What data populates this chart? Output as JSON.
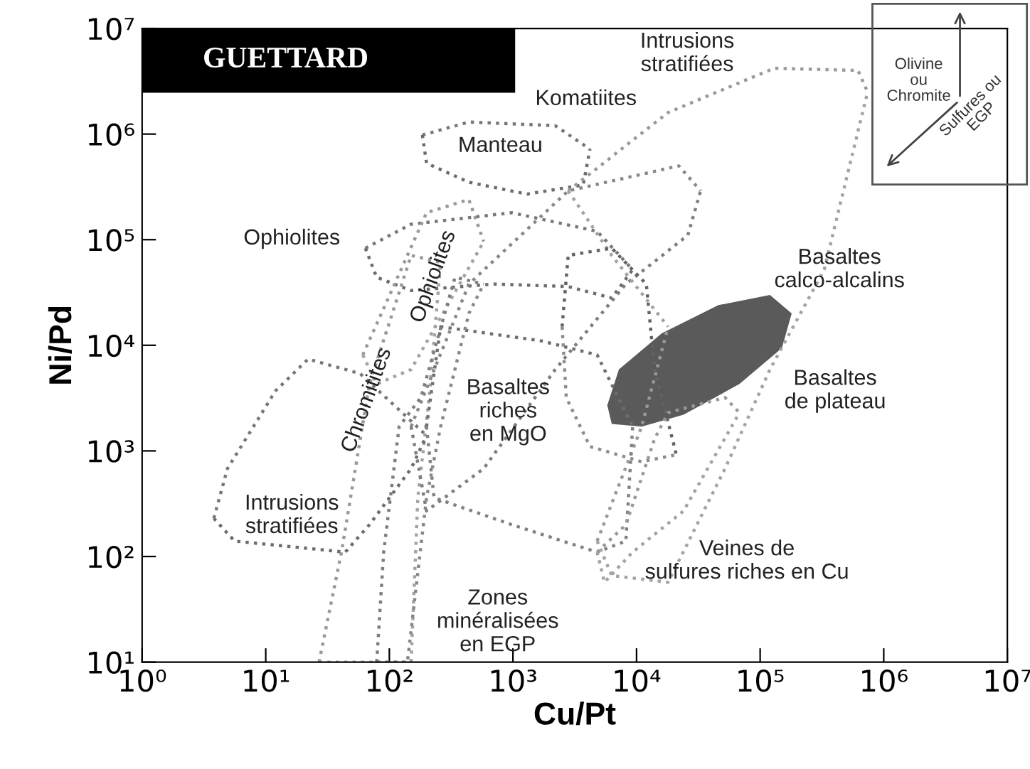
{
  "chart_data": {
    "type": "line",
    "xlabel": "Cu/Pt",
    "ylabel": "Ni/Pd",
    "log": "xy",
    "grid": false,
    "legend": false,
    "line_style": "dotted",
    "marker": "none",
    "xlim": [
      1,
      10000000.0
    ],
    "ylim": [
      10,
      10000000.0
    ],
    "xticks": [
      {
        "value": 1,
        "label": "10⁰"
      },
      {
        "value": 10,
        "label": "10¹"
      },
      {
        "value": 100,
        "label": "10²"
      },
      {
        "value": 1000,
        "label": "10³"
      },
      {
        "value": 10000,
        "label": "10⁴"
      },
      {
        "value": 100000,
        "label": "10⁵"
      },
      {
        "value": 1000000,
        "label": "10⁶"
      },
      {
        "value": 10000000,
        "label": "10⁷"
      }
    ],
    "yticks": [
      {
        "value": 10,
        "label": "10¹"
      },
      {
        "value": 100,
        "label": "10²"
      },
      {
        "value": 1000,
        "label": "10³"
      },
      {
        "value": 10000,
        "label": "10⁴"
      },
      {
        "value": 100000,
        "label": "10⁵"
      },
      {
        "value": 1000000,
        "label": "10⁶"
      },
      {
        "value": 10000000,
        "label": "10⁷"
      }
    ],
    "series": [
      {
        "color": "#777777",
        "x": [
          185,
          440,
          2200,
          4200
        ],
        "values": [
          980000.0,
          1300000.0,
          1200000.0,
          720000.0
        ]
      },
      {
        "color": "#6c6c6c",
        "x": [
          185,
          200,
          440,
          1300,
          3700,
          4200
        ],
        "values": [
          980000.0,
          530000.0,
          350000.0,
          270000.0,
          330000.0,
          720000.0
        ]
      },
      {
        "color": "#777777",
        "x": [
          64,
          150,
          980,
          4800,
          9300
        ],
        "values": [
          83000.0,
          140000.0,
          180000.0,
          120000.0,
          52000.0
        ]
      },
      {
        "color": "#6c6c6c",
        "x": [
          64,
          79,
          150,
          700,
          2800,
          6300,
          9300
        ],
        "values": [
          83000.0,
          44000.0,
          33000.0,
          38000.0,
          36000.0,
          28000.0,
          52000.0
        ]
      },
      {
        "color": "#999999",
        "x": [
          61,
          200,
          440,
          580
        ],
        "values": [
          8100.0,
          180000.0,
          240000.0,
          96000.0
        ]
      },
      {
        "color": "#a3a3a3",
        "x": [
          61,
          79,
          150,
          580
        ],
        "values": [
          8100.0,
          4300.0,
          5900.0,
          96000.0
        ]
      },
      {
        "color": "#999999",
        "x": [
          27,
          41,
          69,
          150,
          260
        ],
        "values": [
          10,
          110,
          4300.0,
          71000.0,
          61000.0
        ]
      },
      {
        "color": "#a3a3a3",
        "x": [
          27,
          150,
          170,
          210,
          260
        ],
        "values": [
          10,
          10,
          360,
          3200.0,
          61000.0
        ]
      },
      {
        "color": "#777777",
        "x": [
          3.8,
          4.9,
          12,
          22,
          58,
          200
        ],
        "values": [
          230,
          680,
          3700.0,
          7400.0,
          5400.0,
          1400.0
        ]
      },
      {
        "color": "#6c6c6c",
        "x": [
          3.8,
          5.6,
          44,
          69,
          150,
          200
        ],
        "values": [
          230,
          140,
          110,
          200,
          680,
          1400.0
        ]
      },
      {
        "color": "#888888",
        "x": [
          150,
          440,
          2800,
          22000.0,
          33000.0
        ],
        "values": [
          1700.0,
          38000.0,
          290000.0,
          500000.0,
          290000.0
        ]
      },
      {
        "color": "#7e7e7e",
        "x": [
          150,
          200,
          580,
          2200,
          8200,
          26000.0,
          33000.0
        ],
        "values": [
          1700.0,
          270,
          680,
          5900.0,
          38000.0,
          110000.0,
          290000.0
        ]
      },
      {
        "color": "#999999",
        "x": [
          2800,
          18000.0,
          130000.0,
          620000.0,
          740000.0
        ],
        "values": [
          290000.0,
          1600000.0,
          4200000.0,
          4000000.0,
          2500000.0
        ]
      },
      {
        "color": "#a3a3a3",
        "x": [
          4800,
          6300,
          18000.0,
          52000.0,
          120000.0,
          330000.0,
          740000.0
        ],
        "values": [
          140,
          66,
          57,
          680,
          5900.0,
          52000.0,
          2500000.0
        ]
      },
      {
        "color": "#999999",
        "x": [
          4800,
          11000.0,
          18000.0
        ],
        "values": [
          140,
          1700.0,
          15000.0
        ]
      },
      {
        "color": "#a3a3a3",
        "x": [
          2800,
          6300,
          18000.0
        ],
        "values": [
          290000.0,
          71000.0,
          15000.0
        ]
      },
      {
        "color": "#6e6e6e",
        "x": [
          200,
          260,
          1700,
          4800,
          9300
        ],
        "values": [
          1700.0,
          15000.0,
          11000.0,
          8100.0,
          1700.0
        ]
      },
      {
        "color": "#828282",
        "x": [
          200,
          230,
          980,
          4800,
          8200,
          9300
        ],
        "values": [
          1700.0,
          360,
          200,
          110,
          140,
          1700.0
        ]
      },
      {
        "color": "#626262",
        "x": [
          2500,
          2800,
          6300,
          12000.0,
          14000.0,
          21000.0
        ],
        "values": [
          15000.0,
          71000.0,
          83000.0,
          38000.0,
          5900.0,
          920
        ]
      },
      {
        "color": "#8c8c8c",
        "x": [
          2500,
          2700,
          4200,
          11000.0,
          21000.0
        ],
        "values": [
          15000.0,
          3200.0,
          1100.0,
          790,
          920
        ]
      },
      {
        "type": "area",
        "color": "#5a5a5a",
        "x": [
          5800,
          7200,
          16000.0,
          46000.0,
          120000.0,
          180000.0,
          150000.0,
          68000.0,
          24000.0,
          11000.0,
          6300,
          5800
        ],
        "values": [
          2700.0,
          5900.0,
          13000.0,
          24000.0,
          30000.0,
          20000.0,
          9400.0,
          4300.0,
          2200.0,
          1700.0,
          1800.0,
          2700.0
        ]
      },
      {
        "color": "#999999",
        "x": [
          4800,
          8200,
          14000.0,
          18000.0,
          52000.0,
          68000.0
        ],
        "values": [
          110,
          200,
          1300.0,
          2300.0,
          3200.0,
          2300.0
        ]
      },
      {
        "color": "#a3a3a3",
        "x": [
          4800,
          5500,
          9300,
          24000.0,
          68000.0
        ],
        "values": [
          110,
          57,
          110,
          270,
          2300.0
        ]
      },
      {
        "color": "#888888",
        "x": [
          79,
          140,
          200,
          260,
          440,
          580
        ],
        "values": [
          10,
          10,
          360,
          1700.0,
          20000.0,
          38000.0
        ]
      },
      {
        "color": "#7e7e7e",
        "x": [
          79,
          90,
          120,
          180,
          340,
          580
        ],
        "values": [
          10,
          110,
          1700.0,
          3200.0,
          44000.0,
          38000.0
        ]
      }
    ],
    "annotations": [
      "GUETTARD",
      "Olivine\nou\nChromite",
      "Sulfures ou\nEGP",
      "Intrusions\nstratifiées",
      "Komatiites",
      "Manteau",
      "Ophiolites",
      "Ophiolites",
      "Chromitites",
      "Basaltes\ncalco-alcalins",
      "Basaltes\nde plateau",
      "Basaltes\nriches\nen MgO",
      "Intrusions\nstratifiées",
      "Veines de\nsulfures riches en Cu",
      "Zones\nminéralisées\nen EGP"
    ]
  }
}
